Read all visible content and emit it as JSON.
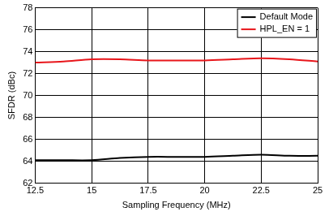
{
  "chart_data": {
    "type": "line",
    "x_label": "Sampling Frequency (MHz)",
    "y_label": "SFDR (dBc)",
    "x": [
      12.5,
      13.75,
      15,
      16.25,
      17.5,
      18.75,
      20,
      21.25,
      22.5,
      23.75,
      25
    ],
    "series": [
      {
        "name": "Default Mode",
        "color": "#000000",
        "values": [
          64.1,
          64.1,
          64.1,
          64.3,
          64.4,
          64.4,
          64.4,
          64.5,
          64.6,
          64.5,
          64.5
        ]
      },
      {
        "name": "HPL_EN = 1",
        "color": "#e8161b",
        "values": [
          73.0,
          73.1,
          73.3,
          73.3,
          73.2,
          73.2,
          73.2,
          73.3,
          73.4,
          73.3,
          73.1
        ]
      }
    ],
    "xlim": [
      12.5,
      25
    ],
    "xticks": [
      12.5,
      15,
      17.5,
      20,
      22.5,
      25
    ],
    "ylim": [
      62,
      78
    ],
    "yticks": [
      62,
      64,
      66,
      68,
      70,
      72,
      74,
      76,
      78
    ],
    "grid": true,
    "legend": "upper right"
  }
}
